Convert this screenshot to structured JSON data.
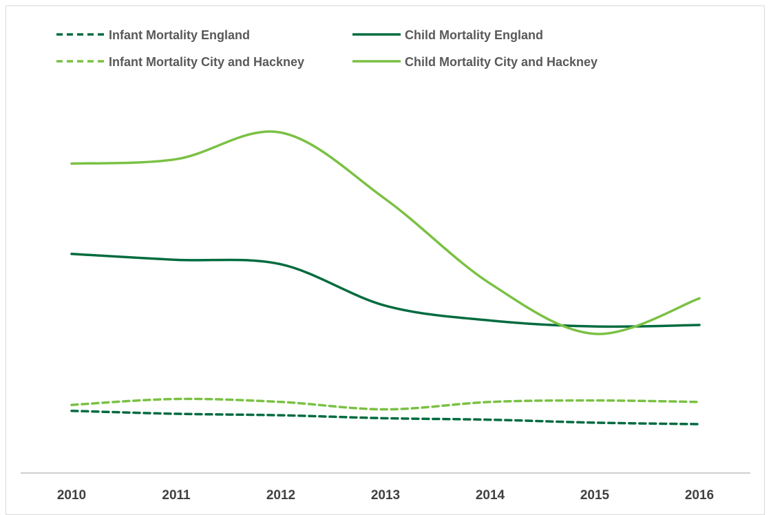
{
  "chart_data": {
    "type": "line",
    "title": "",
    "xlabel": "",
    "ylabel": "",
    "categories": [
      "2010",
      "2011",
      "2012",
      "2013",
      "2014",
      "2015",
      "2016"
    ],
    "ylim": [
      0,
      30
    ],
    "grid": false,
    "legend_position": "top",
    "series": [
      {
        "name": "Infant Mortality England",
        "color": "#006b3f",
        "style": "dashed",
        "values": [
          4.2,
          4.0,
          3.9,
          3.7,
          3.6,
          3.4,
          3.3
        ]
      },
      {
        "name": "Child Mortality England",
        "color": "#006b3f",
        "style": "solid",
        "values": [
          14.8,
          14.4,
          14.1,
          11.3,
          10.3,
          9.9,
          10.0
        ]
      },
      {
        "name": "Infant Mortality City and Hackney",
        "color": "#7ac143",
        "style": "dashed",
        "values": [
          4.6,
          5.0,
          4.8,
          4.3,
          4.8,
          4.9,
          4.8
        ]
      },
      {
        "name": "Child Mortality City and Hackney",
        "color": "#7ac143",
        "style": "solid",
        "values": [
          20.9,
          21.2,
          23.0,
          18.5,
          12.8,
          9.4,
          11.8
        ]
      }
    ]
  }
}
